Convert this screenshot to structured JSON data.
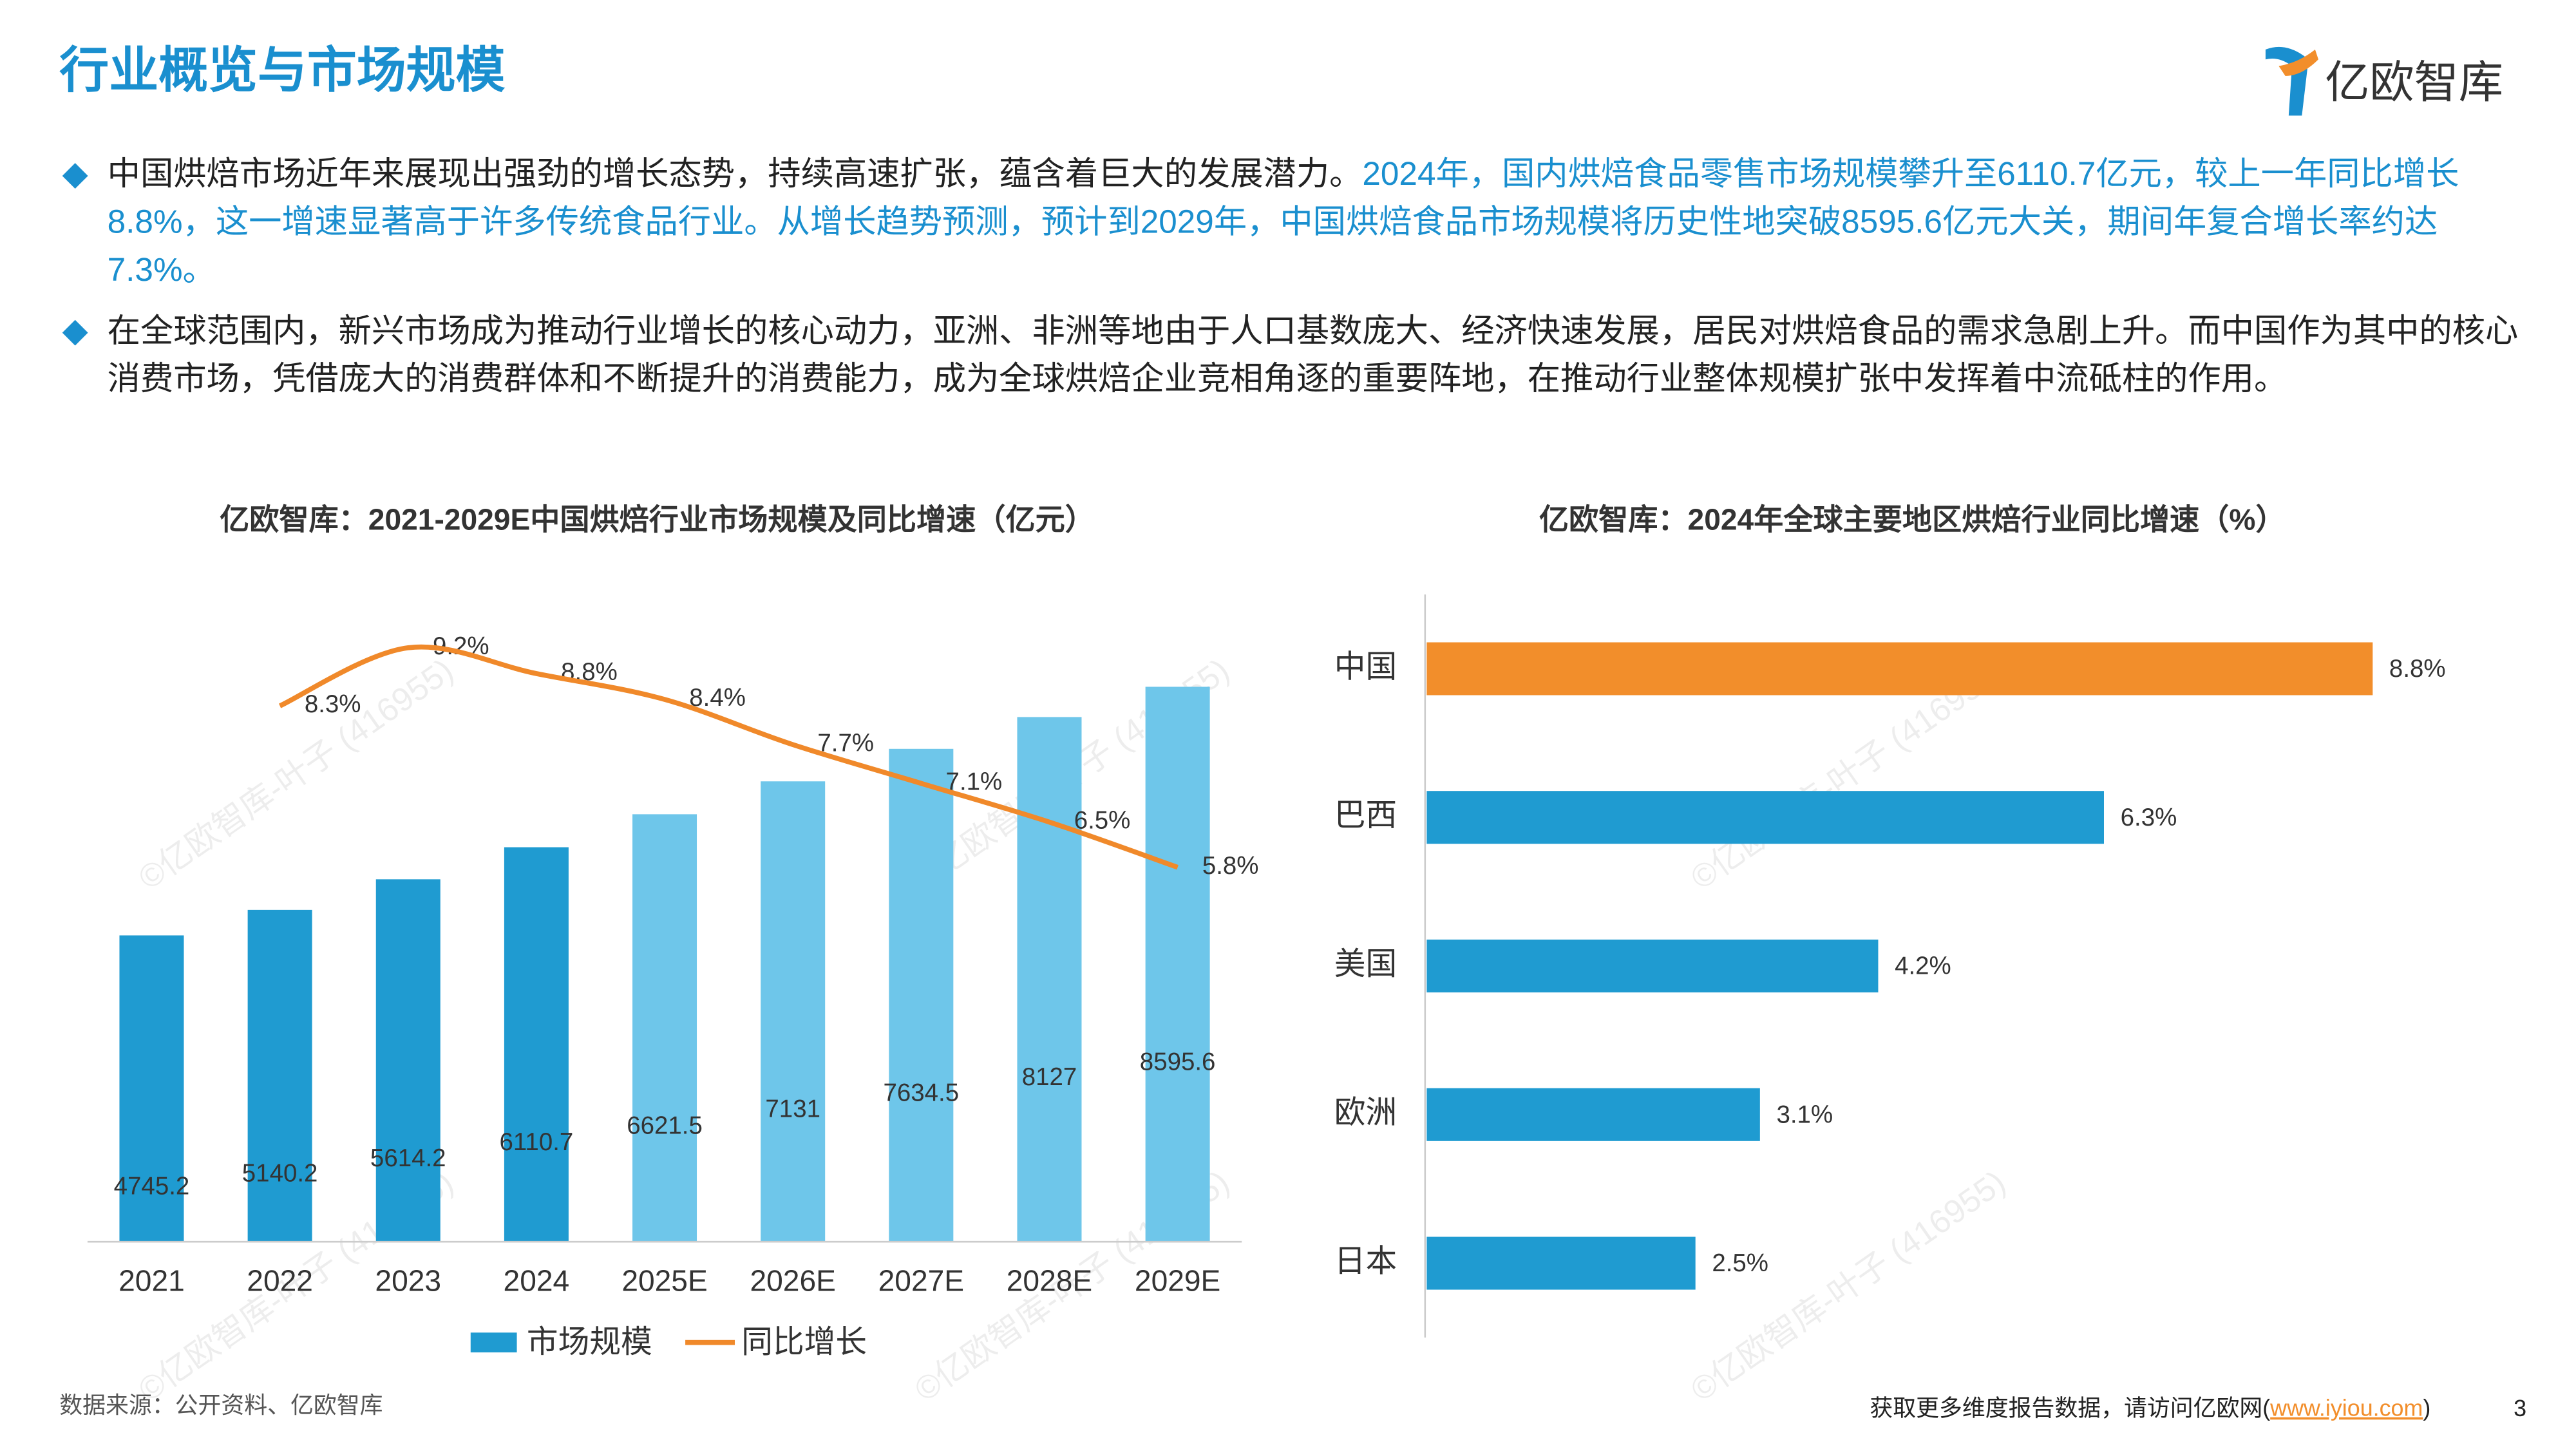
{
  "header": {
    "title": "行业概览与市场规模",
    "logo": "亿欧智库"
  },
  "bullets": [
    {
      "text": "中国烘焙市场近年来展现出强劲的增长态势，持续高速扩张，蕴含着巨大的发展潜力。",
      "highlight": "2024年，国内烘焙食品零售市场规模攀升至6110.7亿元，较上一年同比增长8.8%，这一增速显著高于许多传统食品行业。从增长趋势预测，预计到2029年，中国烘焙食品市场规模将历史性地突破8595.6亿元大关，期间年复合增长率约达7.3%。"
    },
    {
      "text": "在全球范围内，新兴市场成为推动行业增长的核心动力，亚洲、非洲等地由于人口基数庞大、经济快速发展，居民对烘焙食品的需求急剧上升。而中国作为其中的核心消费市场，凭借庞大的消费群体和不断提升的消费能力，成为全球烘焙企业竞相角逐的重要阵地，在推动行业整体规模扩张中发挥着中流砥柱的作用。"
    }
  ],
  "chart_data": [
    {
      "type": "bar-line",
      "title": "亿欧智库：2021-2029E中国烘焙行业市场规模及同比增速（亿元）",
      "categories": [
        "2021",
        "2022",
        "2023",
        "2024",
        "2025E",
        "2026E",
        "2027E",
        "2028E",
        "2029E"
      ],
      "ylim": [
        0,
        10000
      ],
      "y2lim": [
        0,
        10
      ],
      "series": [
        {
          "name": "市场规模",
          "type": "bar",
          "color": "#1f9bd1",
          "colors": [
            "#1f9bd1",
            "#1f9bd1",
            "#1f9bd1",
            "#1f9bd1",
            "#6ec6ea",
            "#6ec6ea",
            "#6ec6ea",
            "#6ec6ea",
            "#6ec6ea"
          ],
          "values": [
            4745.2,
            5140.2,
            5614.2,
            6110.7,
            6621.5,
            7131,
            7634.5,
            8127,
            8595.6
          ]
        },
        {
          "name": "同比增长",
          "type": "line",
          "axis": "y2",
          "color": "#f0892a",
          "values": [
            null,
            8.3,
            9.2,
            8.8,
            8.4,
            7.7,
            7.1,
            6.5,
            5.8
          ],
          "value_labels": [
            null,
            "8.3%",
            "9.2%",
            "8.8%",
            "8.4%",
            "7.7%",
            "7.1%",
            "6.5%",
            "5.8%"
          ]
        }
      ]
    },
    {
      "type": "hbar",
      "title": "亿欧智库：2024年全球主要地区烘焙行业同比增速（%）",
      "categories": [
        "中国",
        "巴西",
        "美国",
        "欧洲",
        "日本"
      ],
      "values": [
        8.8,
        6.3,
        4.2,
        3.1,
        2.5
      ],
      "value_labels": [
        "8.8%",
        "6.3%",
        "4.2%",
        "3.1%",
        "2.5%"
      ],
      "colors": [
        "#f28e2b",
        "#1f9bd1",
        "#1f9bd1",
        "#1f9bd1",
        "#1f9bd1"
      ],
      "xlim": [
        0,
        10
      ]
    }
  ],
  "watermark": "©亿欧智库-叶子 (416955)",
  "footer": {
    "source": "数据来源：公开资料、亿欧智库",
    "note": "获取更多维度报告数据，请访问亿欧网(",
    "link": "www.iyiou.com",
    "close": ")",
    "page": "3"
  }
}
